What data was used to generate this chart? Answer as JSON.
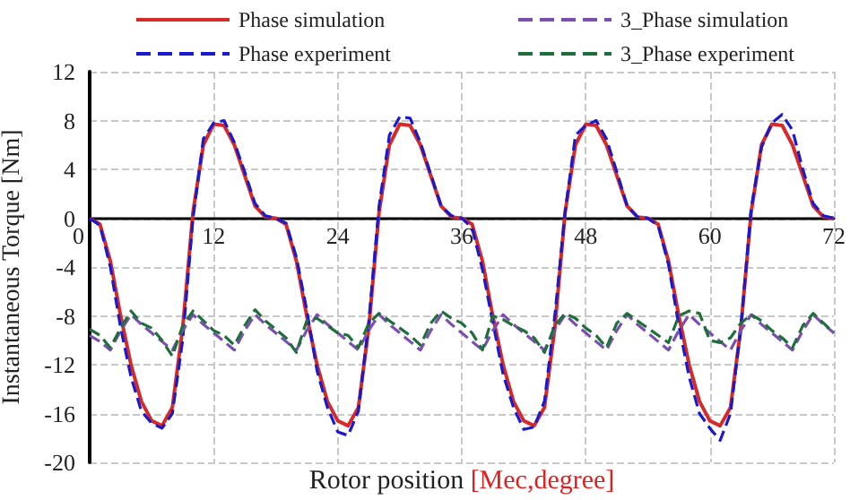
{
  "chart_data": {
    "type": "line",
    "xlabel": "Rotor position [Mec,degree]",
    "ylabel": "Instantaneous Torque [Nm]",
    "x": [
      0,
      1,
      2,
      3,
      4,
      5,
      6,
      7,
      8,
      9,
      10,
      11,
      12,
      13,
      14,
      15,
      16,
      17,
      18,
      19,
      20,
      21,
      22,
      23,
      24,
      25,
      26,
      27,
      28,
      29,
      30,
      31,
      32,
      33,
      34,
      35,
      36,
      37,
      38,
      39,
      40,
      41,
      42,
      43,
      44,
      45,
      46,
      47,
      48,
      49,
      50,
      51,
      52,
      53,
      54,
      55,
      56,
      57,
      58,
      59,
      60,
      61,
      62,
      63,
      64,
      65,
      66,
      67,
      68,
      69,
      70,
      71,
      72
    ],
    "xlim": [
      0,
      72
    ],
    "xticks": [
      0,
      12,
      24,
      36,
      48,
      60,
      72
    ],
    "ylim": [
      -20,
      12
    ],
    "yticks": [
      -20,
      -16,
      -12,
      -8,
      -4,
      0,
      4,
      8,
      12
    ],
    "grid": true,
    "legend": "top",
    "marker": "none",
    "series": [
      {
        "name": "Phase simulation",
        "color": "#d42a2a",
        "line_style": "solid",
        "values": [
          0,
          -0.5,
          -3.5,
          -8,
          -12,
          -15,
          -16.6,
          -17,
          -15.5,
          -9,
          0.5,
          6,
          7.7,
          7.6,
          6,
          3.5,
          1,
          0.1,
          0,
          -0.5,
          -3.5,
          -8,
          -12,
          -15,
          -16.6,
          -17,
          -15.5,
          -9,
          0.5,
          6,
          7.7,
          7.6,
          6,
          3.5,
          1,
          0.1,
          0,
          -0.5,
          -3.5,
          -8,
          -12,
          -15,
          -16.6,
          -17,
          -15.5,
          -9,
          0.5,
          6,
          7.7,
          7.6,
          6,
          3.5,
          1,
          0.1,
          0,
          -0.5,
          -3.5,
          -8,
          -12,
          -15,
          -16.6,
          -17,
          -15.5,
          -9,
          0.5,
          6,
          7.7,
          7.6,
          6,
          3.5,
          1,
          0.1,
          0
        ]
      },
      {
        "name": "Phase experiment",
        "color": "#1a1acc",
        "line_style": "dashed",
        "values": [
          0,
          -0.6,
          -4,
          -9,
          -13,
          -15.8,
          -16.8,
          -17.2,
          -16,
          -10,
          0,
          6.5,
          7.8,
          8,
          6.2,
          3.8,
          1.2,
          0.2,
          0,
          -0.4,
          -3.2,
          -7.5,
          -12.5,
          -15.5,
          -17.5,
          -17.8,
          -15.8,
          -8.5,
          1,
          6.8,
          8.3,
          8.2,
          6.2,
          3.6,
          1,
          0.2,
          0,
          -0.8,
          -4.2,
          -8.5,
          -12.8,
          -15.5,
          -17.3,
          -17.1,
          -15,
          -8,
          0.5,
          6.8,
          7.6,
          8,
          6.5,
          3.8,
          1,
          0.1,
          0,
          -0.6,
          -3.8,
          -8.8,
          -13,
          -16,
          -17.2,
          -18.2,
          -16,
          -9,
          0.8,
          5.8,
          7.8,
          8.5,
          7.2,
          4,
          1.2,
          0.2,
          0
        ]
      },
      {
        "name": "3_Phase simulation",
        "color": "#7a4fae",
        "line_style": "dashed",
        "values": [
          -9.6,
          -10.1,
          -10.8,
          -9.2,
          -7.9,
          -8.7,
          -9.4,
          -10.1,
          -10.8,
          -9.2,
          -7.9,
          -8.7,
          -9.4,
          -10.1,
          -10.8,
          -9.2,
          -7.9,
          -8.7,
          -9.4,
          -10.1,
          -10.8,
          -9.2,
          -7.9,
          -8.7,
          -9.4,
          -10.1,
          -10.8,
          -9.2,
          -7.9,
          -8.7,
          -9.4,
          -10.1,
          -10.8,
          -9.2,
          -7.9,
          -8.7,
          -9.4,
          -10.1,
          -10.8,
          -9.2,
          -7.9,
          -8.7,
          -9.4,
          -10.1,
          -10.8,
          -9.2,
          -7.9,
          -8.7,
          -9.4,
          -10.1,
          -10.8,
          -9.2,
          -7.9,
          -8.7,
          -9.4,
          -10.1,
          -10.8,
          -9.2,
          -7.9,
          -8.7,
          -9.4,
          -10.1,
          -10.8,
          -9.2,
          -7.9,
          -8.7,
          -9.4,
          -10.1,
          -10.8,
          -9.2,
          -7.9,
          -8.7,
          -9.4
        ]
      },
      {
        "name": "3_Phase experiment",
        "color": "#1f6e3c",
        "line_style": "dashed",
        "values": [
          -9.1,
          -9.6,
          -10.6,
          -9,
          -7.6,
          -8.6,
          -9,
          -10,
          -11.3,
          -8.8,
          -7.6,
          -8.4,
          -9.2,
          -9.6,
          -10.4,
          -8.8,
          -7.5,
          -8.4,
          -9.1,
          -9.8,
          -11,
          -8.4,
          -8.2,
          -8.8,
          -9.4,
          -9.6,
          -10.6,
          -8.6,
          -7.8,
          -8.4,
          -9,
          -9.6,
          -10.4,
          -8.6,
          -7.6,
          -8.2,
          -8.6,
          -9.4,
          -10.8,
          -8,
          -8.3,
          -8.8,
          -9.2,
          -9.8,
          -11,
          -8.8,
          -7.8,
          -8.2,
          -9,
          -9.6,
          -10.6,
          -8.6,
          -7.8,
          -8.4,
          -9,
          -9.6,
          -10.2,
          -8,
          -7.6,
          -7.8,
          -10,
          -10.2,
          -9.8,
          -8.6,
          -7.9,
          -8.4,
          -9.2,
          -9.8,
          -10.6,
          -8.8,
          -7.8,
          -8.6,
          -9.4
        ]
      }
    ]
  }
}
